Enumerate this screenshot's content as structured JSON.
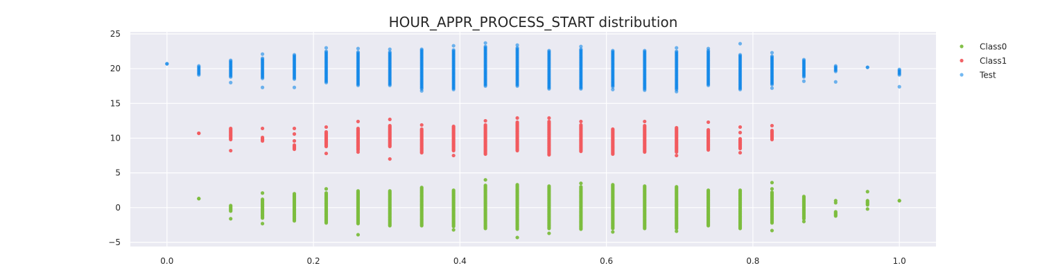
{
  "chart_data": {
    "type": "scatter",
    "title": "HOUR_APPR_PROCESS_START distribution",
    "xlabel": "",
    "ylabel": "",
    "xlim": [
      -0.05,
      1.05
    ],
    "ylim": [
      -5.6,
      25.3
    ],
    "x_ticks": [
      "0.0",
      "0.2",
      "0.4",
      "0.6",
      "0.8",
      "1.0"
    ],
    "x_tick_values": [
      0.0,
      0.2,
      0.4,
      0.6,
      0.8,
      1.0
    ],
    "y_ticks": [
      "−5",
      "0",
      "5",
      "10",
      "15",
      "20",
      "25"
    ],
    "y_tick_values": [
      -5,
      0,
      5,
      10,
      15,
      20,
      25
    ],
    "grid": true,
    "legend_position": "upper-right-outside",
    "background_color": "#eaeaf2",
    "series": [
      {
        "name": "Class0",
        "color": "#7cbd3e",
        "columns": [
          {
            "x": 0.0435,
            "min": 1.3,
            "max": 1.3,
            "outliers": []
          },
          {
            "x": 0.087,
            "min": -0.5,
            "max": 0.3,
            "outliers": [
              -1.6
            ]
          },
          {
            "x": 0.1304,
            "min": -1.5,
            "max": 1.2,
            "outliers": [
              -2.3,
              2.1
            ]
          },
          {
            "x": 0.1739,
            "min": -1.9,
            "max": 2.0,
            "outliers": []
          },
          {
            "x": 0.2174,
            "min": -2.2,
            "max": 2.1,
            "outliers": [
              2.7
            ]
          },
          {
            "x": 0.2609,
            "min": -2.3,
            "max": 2.4,
            "outliers": [
              -3.9
            ]
          },
          {
            "x": 0.3043,
            "min": -2.6,
            "max": 2.4,
            "outliers": []
          },
          {
            "x": 0.3478,
            "min": -2.6,
            "max": 2.9,
            "outliers": []
          },
          {
            "x": 0.3913,
            "min": -2.7,
            "max": 2.5,
            "outliers": [
              -3.2
            ]
          },
          {
            "x": 0.4348,
            "min": -3.0,
            "max": 3.2,
            "outliers": [
              4.0
            ]
          },
          {
            "x": 0.4783,
            "min": -3.1,
            "max": 3.3,
            "outliers": [
              -4.3
            ]
          },
          {
            "x": 0.5217,
            "min": -3.0,
            "max": 3.1,
            "outliers": [
              -3.7
            ]
          },
          {
            "x": 0.5652,
            "min": -3.1,
            "max": 3.0,
            "outliers": [
              3.5
            ]
          },
          {
            "x": 0.6087,
            "min": -3.0,
            "max": 3.3,
            "outliers": [
              -3.5
            ]
          },
          {
            "x": 0.6522,
            "min": -3.0,
            "max": 3.1,
            "outliers": []
          },
          {
            "x": 0.6957,
            "min": -3.0,
            "max": 3.0,
            "outliers": [
              -3.4
            ]
          },
          {
            "x": 0.7391,
            "min": -2.6,
            "max": 2.5,
            "outliers": []
          },
          {
            "x": 0.7826,
            "min": -3.0,
            "max": 2.5,
            "outliers": []
          },
          {
            "x": 0.8261,
            "min": -2.2,
            "max": 2.2,
            "outliers": [
              -3.3,
              3.6,
              2.7
            ]
          },
          {
            "x": 0.8696,
            "min": -1.6,
            "max": 1.6,
            "outliers": [
              -2.0
            ]
          },
          {
            "x": 0.913,
            "min": -1.2,
            "max": -0.6,
            "outliers": [
              0.7,
              1.0
            ]
          },
          {
            "x": 0.9565,
            "min": 0.4,
            "max": 1.0,
            "outliers": [
              -0.2,
              2.3
            ]
          },
          {
            "x": 1.0,
            "min": 1.0,
            "max": 1.0,
            "outliers": []
          }
        ]
      },
      {
        "name": "Class1",
        "color": "#f15b5f",
        "columns": [
          {
            "x": 0.0435,
            "min": 10.7,
            "max": 10.7,
            "outliers": []
          },
          {
            "x": 0.087,
            "min": 9.8,
            "max": 11.4,
            "outliers": [
              8.2
            ]
          },
          {
            "x": 0.1304,
            "min": 9.6,
            "max": 10.1,
            "outliers": [
              11.4
            ]
          },
          {
            "x": 0.1739,
            "min": 8.4,
            "max": 9.0,
            "outliers": [
              9.6,
              10.6,
              11.4
            ]
          },
          {
            "x": 0.2174,
            "min": 8.8,
            "max": 10.9,
            "outliers": [
              7.8,
              11.6
            ]
          },
          {
            "x": 0.2609,
            "min": 8.3,
            "max": 11.4,
            "outliers": [
              8.0,
              12.4
            ]
          },
          {
            "x": 0.3043,
            "min": 8.8,
            "max": 11.8,
            "outliers": [
              7.0,
              12.7
            ]
          },
          {
            "x": 0.3478,
            "min": 7.9,
            "max": 11.3,
            "outliers": [
              11.9
            ]
          },
          {
            "x": 0.3913,
            "min": 8.2,
            "max": 11.7,
            "outliers": [
              7.5
            ]
          },
          {
            "x": 0.4348,
            "min": 7.7,
            "max": 11.9,
            "outliers": [
              12.5
            ]
          },
          {
            "x": 0.4783,
            "min": 8.2,
            "max": 12.3,
            "outliers": [
              12.9
            ]
          },
          {
            "x": 0.5217,
            "min": 7.6,
            "max": 12.4,
            "outliers": [
              12.9
            ]
          },
          {
            "x": 0.5652,
            "min": 8.1,
            "max": 11.9,
            "outliers": [
              12.4
            ]
          },
          {
            "x": 0.6087,
            "min": 7.7,
            "max": 11.3,
            "outliers": []
          },
          {
            "x": 0.6522,
            "min": 8.0,
            "max": 11.8,
            "outliers": [
              12.4
            ]
          },
          {
            "x": 0.6957,
            "min": 8.0,
            "max": 11.5,
            "outliers": [
              7.5
            ]
          },
          {
            "x": 0.7391,
            "min": 8.3,
            "max": 11.2,
            "outliers": [
              12.3
            ]
          },
          {
            "x": 0.7826,
            "min": 8.5,
            "max": 9.9,
            "outliers": [
              7.9,
              10.8,
              11.6
            ]
          },
          {
            "x": 0.8261,
            "min": 9.8,
            "max": 11.1,
            "outliers": [
              11.8
            ]
          }
        ]
      },
      {
        "name": "Test",
        "color": "#0080e8",
        "columns": [
          {
            "x": 0.0,
            "min": 20.7,
            "max": 20.7,
            "outliers": []
          },
          {
            "x": 0.0435,
            "min": 19.1,
            "max": 20.4,
            "outliers": []
          },
          {
            "x": 0.087,
            "min": 18.8,
            "max": 21.2,
            "outliers": [
              18.0
            ]
          },
          {
            "x": 0.1304,
            "min": 18.6,
            "max": 21.5,
            "outliers": [
              17.3,
              22.1
            ]
          },
          {
            "x": 0.1739,
            "min": 18.5,
            "max": 22.0,
            "outliers": [
              17.3
            ]
          },
          {
            "x": 0.2174,
            "min": 18.0,
            "max": 22.5,
            "outliers": [
              23.0
            ]
          },
          {
            "x": 0.2609,
            "min": 17.6,
            "max": 22.4,
            "outliers": [
              22.9
            ]
          },
          {
            "x": 0.3043,
            "min": 17.6,
            "max": 22.4,
            "outliers": [
              22.8
            ]
          },
          {
            "x": 0.3478,
            "min": 17.1,
            "max": 22.8,
            "outliers": [
              16.8
            ]
          },
          {
            "x": 0.3913,
            "min": 17.0,
            "max": 22.7,
            "outliers": [
              23.3
            ]
          },
          {
            "x": 0.4348,
            "min": 17.5,
            "max": 23.2,
            "outliers": [
              23.7
            ]
          },
          {
            "x": 0.4783,
            "min": 17.5,
            "max": 23.0,
            "outliers": [
              23.4
            ]
          },
          {
            "x": 0.5217,
            "min": 17.1,
            "max": 22.6,
            "outliers": []
          },
          {
            "x": 0.5652,
            "min": 17.1,
            "max": 22.8,
            "outliers": [
              23.2
            ]
          },
          {
            "x": 0.6087,
            "min": 17.4,
            "max": 22.6,
            "outliers": [
              17.0
            ]
          },
          {
            "x": 0.6522,
            "min": 17.1,
            "max": 22.6,
            "outliers": [
              16.9
            ]
          },
          {
            "x": 0.6957,
            "min": 17.0,
            "max": 22.5,
            "outliers": [
              16.7,
              23.0
            ]
          },
          {
            "x": 0.7391,
            "min": 17.6,
            "max": 22.6,
            "outliers": [
              22.9
            ]
          },
          {
            "x": 0.7826,
            "min": 17.0,
            "max": 22.0,
            "outliers": [
              23.6
            ]
          },
          {
            "x": 0.8261,
            "min": 17.7,
            "max": 21.8,
            "outliers": [
              17.2,
              22.3
            ]
          },
          {
            "x": 0.8696,
            "min": 18.8,
            "max": 21.3,
            "outliers": [
              18.2
            ]
          },
          {
            "x": 0.913,
            "min": 19.6,
            "max": 20.4,
            "outliers": [
              18.1
            ]
          },
          {
            "x": 0.9565,
            "min": 20.2,
            "max": 20.2,
            "outliers": []
          },
          {
            "x": 1.0,
            "min": 19.1,
            "max": 19.9,
            "outliers": [
              17.4
            ]
          }
        ]
      }
    ]
  }
}
